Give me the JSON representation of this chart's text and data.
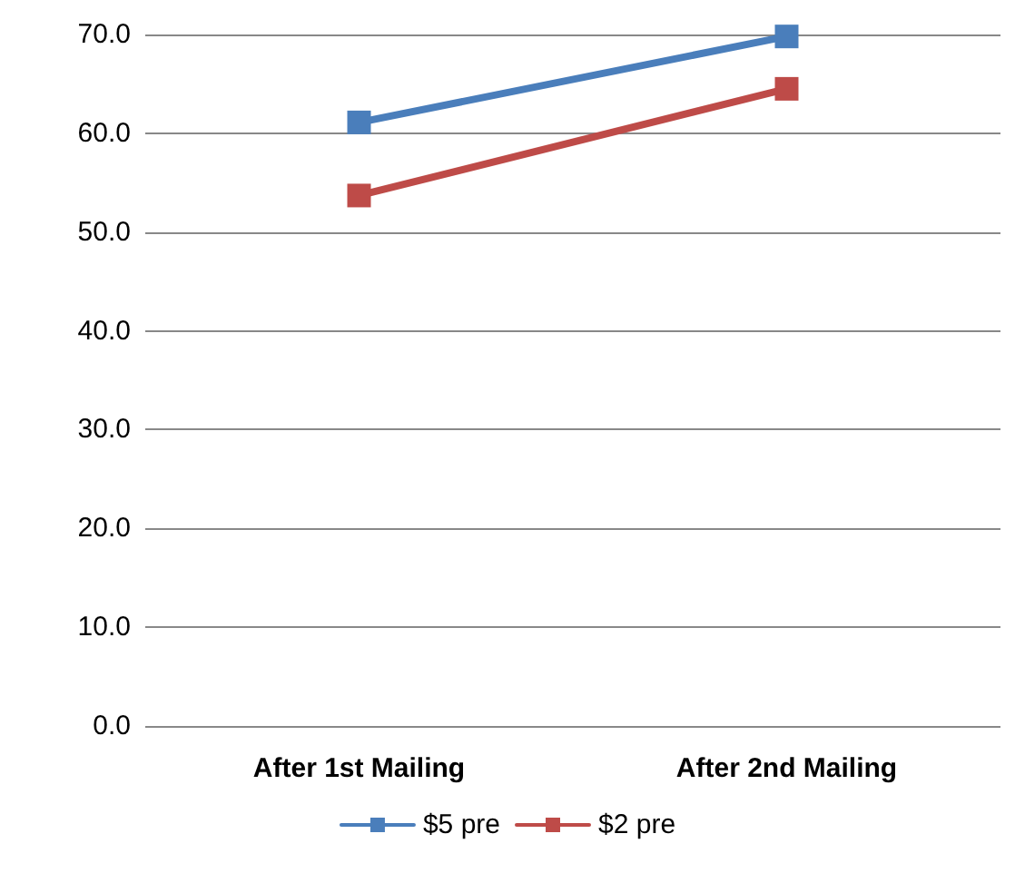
{
  "chart_data": {
    "type": "line",
    "categories": [
      "After 1st Mailing",
      "After 2nd Mailing"
    ],
    "series": [
      {
        "name": "$5 pre",
        "color": "#4a7ebb",
        "values": [
          61.1,
          69.8
        ]
      },
      {
        "name": "$2 pre",
        "color": "#be4b48",
        "values": [
          53.7,
          64.5
        ]
      }
    ],
    "ylim": [
      0,
      70
    ],
    "yticks": [
      {
        "value": 0,
        "label": "0.0"
      },
      {
        "value": 10,
        "label": "10.0"
      },
      {
        "value": 20,
        "label": "20.0"
      },
      {
        "value": 30,
        "label": "30.0"
      },
      {
        "value": 40,
        "label": "40.0"
      },
      {
        "value": 50,
        "label": "50.0"
      },
      {
        "value": 60,
        "label": "60.0"
      },
      {
        "value": 70,
        "label": "70.0"
      }
    ],
    "grid": "y",
    "legend": "bottom",
    "marker": "square",
    "line_style": "solid"
  }
}
